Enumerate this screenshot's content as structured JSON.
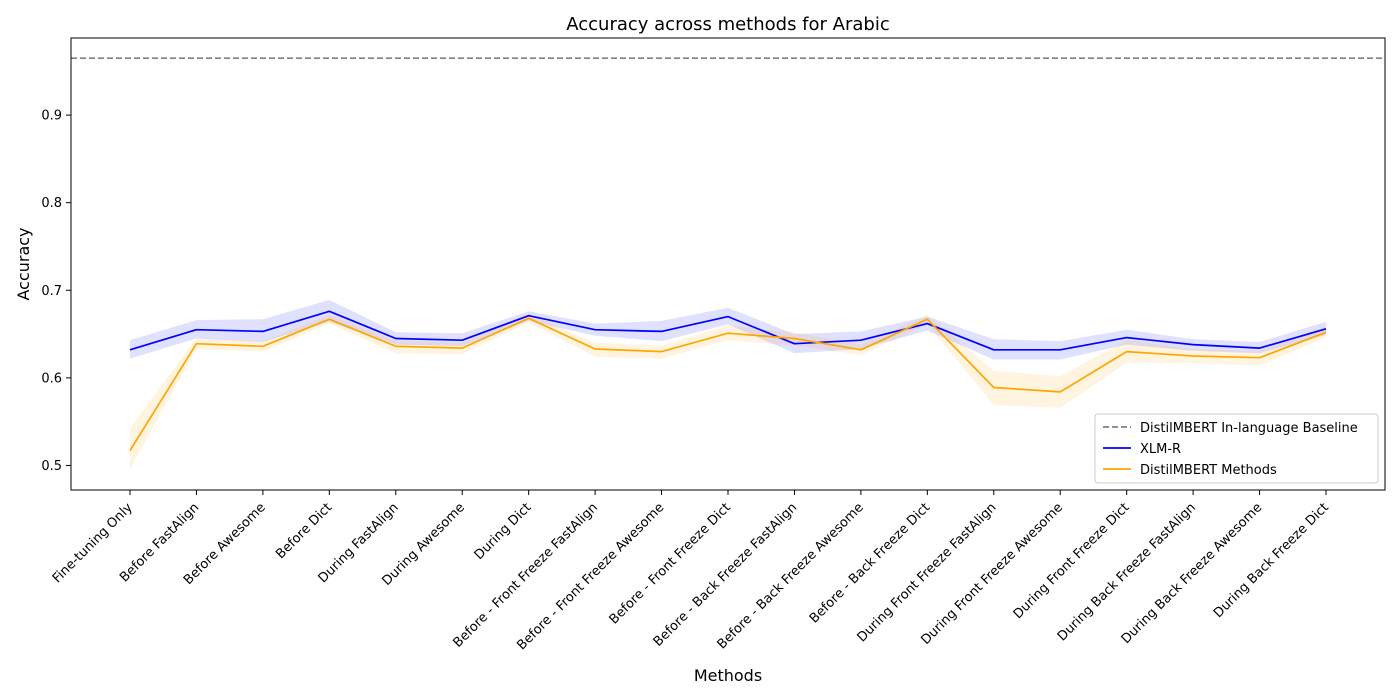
{
  "chart_data": {
    "type": "line",
    "title": "Accuracy across methods for Arabic",
    "xlabel": "Methods",
    "ylabel": "Accuracy",
    "ylim": [
      0.472,
      0.988
    ],
    "yticks": [
      0.5,
      0.6,
      0.7,
      0.8,
      0.9
    ],
    "ytick_labels": [
      "0.5",
      "0.6",
      "0.7",
      "0.8",
      "0.9"
    ],
    "categories": [
      "Fine-tuning Only",
      "Before FastAlign",
      "Before Awesome",
      "Before Dict",
      "During FastAlign",
      "During Awesome",
      "During Dict",
      "Before - Front Freeze FastAlign",
      "Before - Front Freeze Awesome",
      "Before - Front Freeze Dict",
      "Before - Back Freeze FastAlign",
      "Before - Back Freeze Awesome",
      "Before - Back Freeze Dict",
      "During Front Freeze FastAlign",
      "During Front Freeze Awesome",
      "During Front Freeze Dict",
      "During Back Freeze FastAlign",
      "During Back Freeze Awesome",
      "During Back Freeze Dict"
    ],
    "baseline": {
      "name": "DistilMBERT In-language Baseline",
      "value": 0.965,
      "color": "#808080"
    },
    "series": [
      {
        "name": "XLM-R",
        "color": "#0000ff",
        "values": [
          0.632,
          0.655,
          0.653,
          0.676,
          0.645,
          0.643,
          0.671,
          0.655,
          0.653,
          0.67,
          0.639,
          0.643,
          0.662,
          0.632,
          0.632,
          0.646,
          0.638,
          0.634,
          0.656
        ],
        "lower": [
          0.622,
          0.645,
          0.641,
          0.664,
          0.638,
          0.636,
          0.665,
          0.648,
          0.642,
          0.661,
          0.628,
          0.633,
          0.654,
          0.621,
          0.621,
          0.638,
          0.631,
          0.628,
          0.649
        ],
        "upper": [
          0.643,
          0.666,
          0.667,
          0.689,
          0.652,
          0.651,
          0.676,
          0.662,
          0.665,
          0.68,
          0.65,
          0.653,
          0.67,
          0.644,
          0.642,
          0.655,
          0.644,
          0.641,
          0.664
        ]
      },
      {
        "name": "DistilMBERT Methods",
        "color": "#ffa500",
        "values": [
          0.517,
          0.639,
          0.636,
          0.667,
          0.636,
          0.634,
          0.668,
          0.633,
          0.63,
          0.651,
          0.645,
          0.632,
          0.667,
          0.589,
          0.584,
          0.63,
          0.625,
          0.623,
          0.652
        ],
        "lower": [
          0.496,
          0.633,
          0.63,
          0.662,
          0.628,
          0.627,
          0.663,
          0.624,
          0.622,
          0.643,
          0.637,
          0.626,
          0.661,
          0.569,
          0.566,
          0.617,
          0.617,
          0.614,
          0.646
        ],
        "upper": [
          0.543,
          0.645,
          0.642,
          0.672,
          0.642,
          0.64,
          0.673,
          0.64,
          0.637,
          0.66,
          0.652,
          0.638,
          0.672,
          0.608,
          0.602,
          0.643,
          0.633,
          0.631,
          0.659
        ]
      }
    ],
    "legend": {
      "placement": "bottom-right",
      "entries": [
        "DistilMBERT In-language Baseline",
        "XLM-R",
        "DistilMBERT Methods"
      ]
    },
    "grid": false
  }
}
